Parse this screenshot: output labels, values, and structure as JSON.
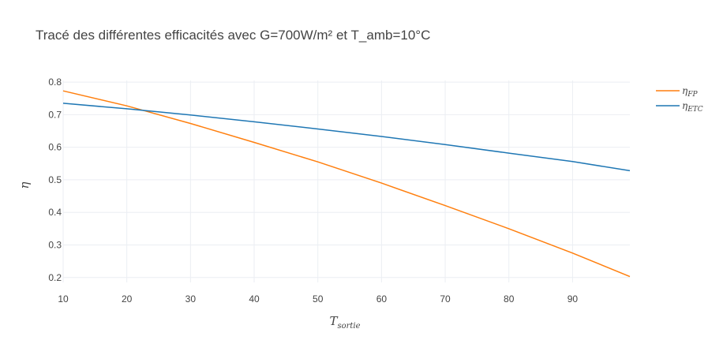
{
  "chart_data": {
    "type": "line",
    "title": "Tracé des différentes efficacités avec G=700W/m² et T_amb=10°C",
    "xlabel": "T",
    "xlabel_sub": "sortie",
    "ylabel": "η",
    "xlim": [
      10,
      99
    ],
    "ylim": [
      0.185,
      0.805
    ],
    "xticks": [
      "10",
      "20",
      "30",
      "40",
      "50",
      "60",
      "70",
      "80",
      "90"
    ],
    "yticks": [
      "0.2",
      "0.3",
      "0.4",
      "0.5",
      "0.6",
      "0.7",
      "0.8"
    ],
    "grid": true,
    "legend_position": "top-right",
    "x": [
      10,
      20,
      30,
      40,
      50,
      60,
      70,
      80,
      90,
      99
    ],
    "series": [
      {
        "name": "η",
        "name_sub": "FP",
        "color": "#ff7f0e",
        "values": [
          0.773,
          0.727,
          0.673,
          0.615,
          0.555,
          0.49,
          0.421,
          0.35,
          0.275,
          0.203
        ]
      },
      {
        "name": "η",
        "name_sub": "ETC",
        "color": "#1f77b4",
        "values": [
          0.735,
          0.718,
          0.699,
          0.678,
          0.656,
          0.633,
          0.608,
          0.582,
          0.556,
          0.528
        ]
      }
    ]
  }
}
